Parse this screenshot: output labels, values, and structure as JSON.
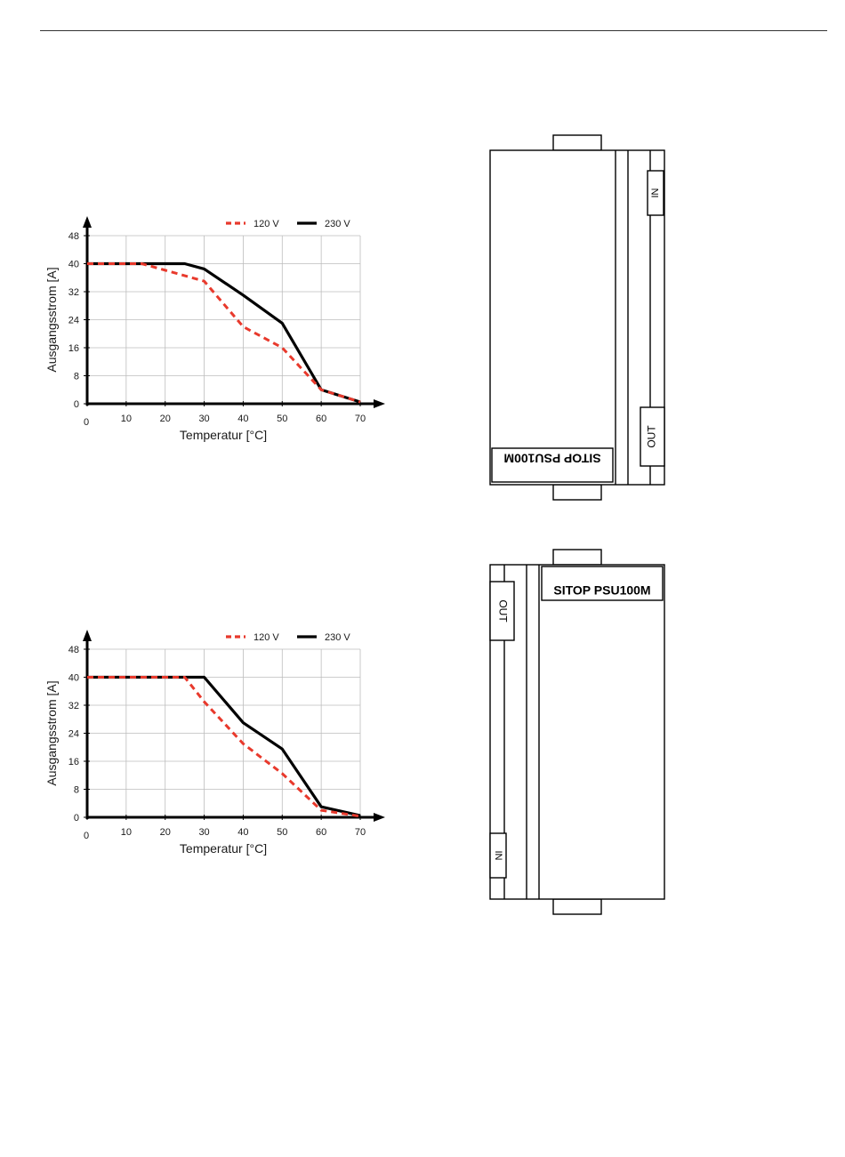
{
  "chart_data": [
    {
      "type": "line",
      "xlabel": "Temperatur [°C]",
      "ylabel": "Ausgangsstrom [A]",
      "xticks": [
        0,
        10,
        20,
        30,
        40,
        50,
        60,
        70
      ],
      "yticks": [
        0,
        8,
        16,
        24,
        32,
        40,
        48
      ],
      "xlim": [
        0,
        70
      ],
      "ylim": [
        0,
        48
      ],
      "grid": true,
      "legend": "top-right",
      "series": [
        {
          "name": "120 V",
          "style": "dashed",
          "color": "#e8392c",
          "points": [
            [
              0,
              40
            ],
            [
              14,
              40
            ],
            [
              30,
              35
            ],
            [
              40,
              22
            ],
            [
              50,
              16
            ],
            [
              60,
              4
            ],
            [
              70,
              0.5
            ]
          ]
        },
        {
          "name": "230 V",
          "style": "solid",
          "color": "#000000",
          "points": [
            [
              0,
              40
            ],
            [
              25,
              40
            ],
            [
              30,
              38.5
            ],
            [
              40,
              31
            ],
            [
              50,
              23
            ],
            [
              60,
              4
            ],
            [
              70,
              0.5
            ]
          ]
        }
      ]
    },
    {
      "type": "line",
      "xlabel": "Temperatur [°C]",
      "ylabel": "Ausgangsstrom [A]",
      "xticks": [
        0,
        10,
        20,
        30,
        40,
        50,
        60,
        70
      ],
      "yticks": [
        0,
        8,
        16,
        24,
        32,
        40,
        48
      ],
      "xlim": [
        0,
        70
      ],
      "ylim": [
        0,
        48
      ],
      "grid": true,
      "legend": "top-right",
      "series": [
        {
          "name": "120 V",
          "style": "dashed",
          "color": "#e8392c",
          "points": [
            [
              0,
              40
            ],
            [
              25,
              40
            ],
            [
              30,
              33
            ],
            [
              40,
              21
            ],
            [
              50,
              12.5
            ],
            [
              60,
              2
            ],
            [
              70,
              0.3
            ]
          ]
        },
        {
          "name": "230 V",
          "style": "solid",
          "color": "#000000",
          "points": [
            [
              0,
              40
            ],
            [
              30,
              40
            ],
            [
              40,
              27
            ],
            [
              50,
              19.5
            ],
            [
              60,
              3
            ],
            [
              70,
              0.5
            ]
          ]
        }
      ]
    }
  ],
  "devices": [
    {
      "label": "SITOP PSU100M",
      "port_in": "IN",
      "port_out": "OUT",
      "orientation": "upside-down"
    },
    {
      "label": "SITOP PSU100M",
      "port_in": "IN",
      "port_out": "OUT",
      "orientation": "upright"
    }
  ],
  "colors": {
    "dashed_series": "#e8392c",
    "solid_series": "#000000",
    "grid": "#bdbdbd"
  }
}
